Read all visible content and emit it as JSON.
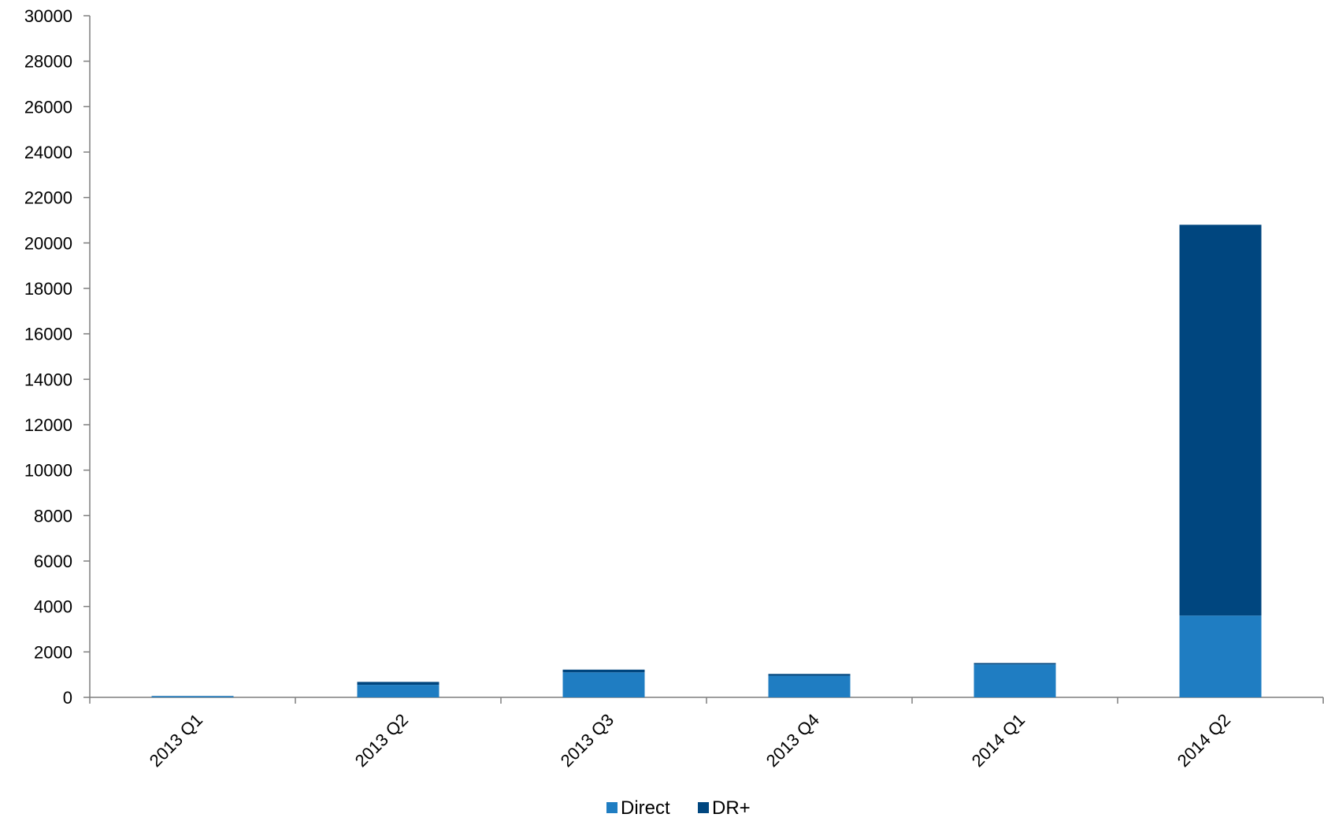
{
  "chart_data": {
    "type": "bar",
    "stacked": true,
    "categories": [
      "2013 Q1",
      "2013 Q2",
      "2013 Q3",
      "2013 Q4",
      "2014 Q1",
      "2014 Q2"
    ],
    "series": [
      {
        "name": "Direct",
        "values": [
          50,
          550,
          1100,
          950,
          1450,
          3600
        ],
        "color": "#1f7dc2"
      },
      {
        "name": "DR+",
        "values": [
          10,
          130,
          120,
          80,
          60,
          17200
        ],
        "color": "#00467f"
      }
    ],
    "ylim": [
      0,
      30000
    ],
    "yticks": [
      0,
      2000,
      4000,
      6000,
      8000,
      10000,
      12000,
      14000,
      16000,
      18000,
      20000,
      22000,
      24000,
      26000,
      28000,
      30000
    ],
    "grid": false,
    "legend_position": "bottom-center"
  }
}
